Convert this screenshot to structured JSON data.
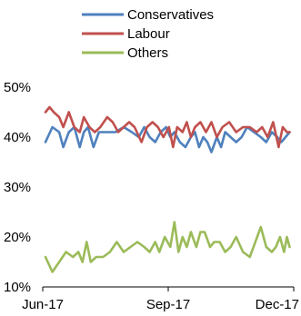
{
  "chart_data": {
    "type": "line",
    "title": "",
    "xlabel": "",
    "ylabel": "",
    "ylim": [
      0.1,
      0.5
    ],
    "y_ticks": [
      "50%",
      "40%",
      "30%",
      "20%",
      "10%"
    ],
    "x_ticks": [
      "Jun-17",
      "Sep-17",
      "Dec-17"
    ],
    "x_range": [
      "2017-06-01",
      "2017-12-01"
    ],
    "grid": false,
    "legend_position": "top-center",
    "series": [
      {
        "name": "Conservatives",
        "color": "#4F81BD",
        "points": [
          [
            "2017-06-03",
            0.39
          ],
          [
            "2017-06-08",
            0.42
          ],
          [
            "2017-06-13",
            0.41
          ],
          [
            "2017-06-16",
            0.38
          ],
          [
            "2017-06-20",
            0.41
          ],
          [
            "2017-06-24",
            0.42
          ],
          [
            "2017-06-28",
            0.38
          ],
          [
            "2017-07-01",
            0.41
          ],
          [
            "2017-07-04",
            0.42
          ],
          [
            "2017-07-08",
            0.38
          ],
          [
            "2017-07-12",
            0.41
          ],
          [
            "2017-07-18",
            0.41
          ],
          [
            "2017-07-24",
            0.41
          ],
          [
            "2017-07-30",
            0.42
          ],
          [
            "2017-08-05",
            0.41
          ],
          [
            "2017-08-10",
            0.4
          ],
          [
            "2017-08-14",
            0.42
          ],
          [
            "2017-08-18",
            0.4
          ],
          [
            "2017-08-22",
            0.39
          ],
          [
            "2017-08-26",
            0.41
          ],
          [
            "2017-08-30",
            0.42
          ],
          [
            "2017-09-02",
            0.4
          ],
          [
            "2017-09-05",
            0.41
          ],
          [
            "2017-09-09",
            0.39
          ],
          [
            "2017-09-13",
            0.38
          ],
          [
            "2017-09-17",
            0.4
          ],
          [
            "2017-09-20",
            0.41
          ],
          [
            "2017-09-23",
            0.38
          ],
          [
            "2017-09-26",
            0.4
          ],
          [
            "2017-09-29",
            0.39
          ],
          [
            "2017-10-02",
            0.37
          ],
          [
            "2017-10-06",
            0.4
          ],
          [
            "2017-10-09",
            0.38
          ],
          [
            "2017-10-12",
            0.41
          ],
          [
            "2017-10-16",
            0.4
          ],
          [
            "2017-10-20",
            0.39
          ],
          [
            "2017-10-24",
            0.4
          ],
          [
            "2017-10-28",
            0.42
          ],
          [
            "2017-11-02",
            0.41
          ],
          [
            "2017-11-07",
            0.4
          ],
          [
            "2017-11-11",
            0.39
          ],
          [
            "2017-11-15",
            0.41
          ],
          [
            "2017-11-19",
            0.4
          ],
          [
            "2017-11-22",
            0.39
          ],
          [
            "2017-11-25",
            0.4
          ],
          [
            "2017-11-28",
            0.41
          ]
        ]
      },
      {
        "name": "Labour",
        "color": "#C0504D",
        "points": [
          [
            "2017-06-03",
            0.45
          ],
          [
            "2017-06-06",
            0.46
          ],
          [
            "2017-06-09",
            0.45
          ],
          [
            "2017-06-13",
            0.44
          ],
          [
            "2017-06-16",
            0.42
          ],
          [
            "2017-06-20",
            0.45
          ],
          [
            "2017-06-24",
            0.42
          ],
          [
            "2017-06-28",
            0.41
          ],
          [
            "2017-07-01",
            0.44
          ],
          [
            "2017-07-05",
            0.42
          ],
          [
            "2017-07-09",
            0.41
          ],
          [
            "2017-07-13",
            0.42
          ],
          [
            "2017-07-18",
            0.44
          ],
          [
            "2017-07-22",
            0.43
          ],
          [
            "2017-07-26",
            0.41
          ],
          [
            "2017-07-30",
            0.42
          ],
          [
            "2017-08-03",
            0.43
          ],
          [
            "2017-08-07",
            0.42
          ],
          [
            "2017-08-12",
            0.39
          ],
          [
            "2017-08-16",
            0.42
          ],
          [
            "2017-08-20",
            0.43
          ],
          [
            "2017-08-24",
            0.42
          ],
          [
            "2017-08-28",
            0.4
          ],
          [
            "2017-09-01",
            0.42
          ],
          [
            "2017-09-04",
            0.38
          ],
          [
            "2017-09-07",
            0.42
          ],
          [
            "2017-09-11",
            0.41
          ],
          [
            "2017-09-14",
            0.43
          ],
          [
            "2017-09-17",
            0.4
          ],
          [
            "2017-09-20",
            0.42
          ],
          [
            "2017-09-24",
            0.43
          ],
          [
            "2017-09-28",
            0.41
          ],
          [
            "2017-10-02",
            0.43
          ],
          [
            "2017-10-06",
            0.4
          ],
          [
            "2017-10-10",
            0.42
          ],
          [
            "2017-10-15",
            0.43
          ],
          [
            "2017-10-20",
            0.41
          ],
          [
            "2017-10-25",
            0.42
          ],
          [
            "2017-10-30",
            0.42
          ],
          [
            "2017-11-04",
            0.41
          ],
          [
            "2017-11-08",
            0.42
          ],
          [
            "2017-11-12",
            0.4
          ],
          [
            "2017-11-16",
            0.43
          ],
          [
            "2017-11-20",
            0.38
          ],
          [
            "2017-11-23",
            0.42
          ],
          [
            "2017-11-26",
            0.41
          ],
          [
            "2017-11-28",
            0.41
          ]
        ]
      },
      {
        "name": "Others",
        "color": "#9BBB59",
        "points": [
          [
            "2017-06-03",
            0.16
          ],
          [
            "2017-06-08",
            0.13
          ],
          [
            "2017-06-13",
            0.15
          ],
          [
            "2017-06-18",
            0.17
          ],
          [
            "2017-06-23",
            0.16
          ],
          [
            "2017-06-27",
            0.17
          ],
          [
            "2017-06-30",
            0.15
          ],
          [
            "2017-07-03",
            0.19
          ],
          [
            "2017-07-06",
            0.15
          ],
          [
            "2017-07-10",
            0.16
          ],
          [
            "2017-07-15",
            0.16
          ],
          [
            "2017-07-20",
            0.17
          ],
          [
            "2017-07-25",
            0.19
          ],
          [
            "2017-07-30",
            0.17
          ],
          [
            "2017-08-04",
            0.18
          ],
          [
            "2017-08-09",
            0.19
          ],
          [
            "2017-08-14",
            0.18
          ],
          [
            "2017-08-18",
            0.17
          ],
          [
            "2017-08-22",
            0.19
          ],
          [
            "2017-08-25",
            0.17
          ],
          [
            "2017-08-29",
            0.2
          ],
          [
            "2017-09-02",
            0.18
          ],
          [
            "2017-09-05",
            0.23
          ],
          [
            "2017-09-08",
            0.17
          ],
          [
            "2017-09-11",
            0.2
          ],
          [
            "2017-09-14",
            0.18
          ],
          [
            "2017-09-17",
            0.21
          ],
          [
            "2017-09-21",
            0.18
          ],
          [
            "2017-09-24",
            0.21
          ],
          [
            "2017-09-27",
            0.21
          ],
          [
            "2017-10-01",
            0.18
          ],
          [
            "2017-10-04",
            0.19
          ],
          [
            "2017-10-08",
            0.19
          ],
          [
            "2017-10-12",
            0.17
          ],
          [
            "2017-10-16",
            0.18
          ],
          [
            "2017-10-20",
            0.2
          ],
          [
            "2017-10-25",
            0.17
          ],
          [
            "2017-10-30",
            0.16
          ],
          [
            "2017-11-03",
            0.19
          ],
          [
            "2017-11-07",
            0.22
          ],
          [
            "2017-11-11",
            0.18
          ],
          [
            "2017-11-15",
            0.17
          ],
          [
            "2017-11-18",
            0.18
          ],
          [
            "2017-11-21",
            0.2
          ],
          [
            "2017-11-24",
            0.17
          ],
          [
            "2017-11-26",
            0.2
          ],
          [
            "2017-11-28",
            0.18
          ]
        ]
      }
    ]
  }
}
